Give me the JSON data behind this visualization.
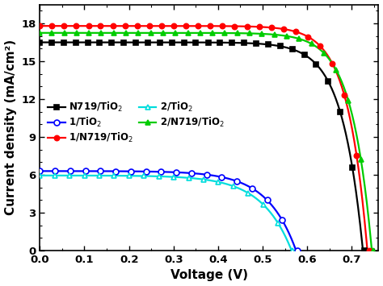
{
  "title": "",
  "xlabel": "Voltage (V)",
  "ylabel": "Current density (mA/cm²)",
  "xlim": [
    0,
    0.76
  ],
  "ylim": [
    0,
    19.5
  ],
  "yticks": [
    0,
    3,
    6,
    9,
    12,
    15,
    18
  ],
  "xticks": [
    0.0,
    0.1,
    0.2,
    0.3,
    0.4,
    0.5,
    0.6,
    0.7
  ],
  "series": [
    {
      "label": "N719/TiO$_2$",
      "color": "#000000",
      "marker": "s",
      "markerfacecolor": "#000000",
      "markeredgecolor": "#000000",
      "markersize": 4.5,
      "linewidth": 1.6,
      "jsc": 16.5,
      "voc": 0.725,
      "n_ideal": 1.8,
      "n_markers": 28
    },
    {
      "label": "1/N719/TiO$_2$",
      "color": "#ff0000",
      "marker": "o",
      "markerfacecolor": "#ff0000",
      "markeredgecolor": "#ff0000",
      "markersize": 4.5,
      "linewidth": 1.6,
      "jsc": 17.8,
      "voc": 0.735,
      "n_ideal": 1.7,
      "n_markers": 28
    },
    {
      "label": "2/N719/TiO$_2$",
      "color": "#00cc00",
      "marker": "^",
      "markerfacecolor": "#00cc00",
      "markeredgecolor": "#00cc00",
      "markersize": 4.5,
      "linewidth": 1.6,
      "jsc": 17.25,
      "voc": 0.745,
      "n_ideal": 1.75,
      "n_markers": 28
    },
    {
      "label": "1/TiO$_2$",
      "color": "#0000ff",
      "marker": "o",
      "markerfacecolor": "#ffffff",
      "markeredgecolor": "#0000ff",
      "markersize": 5,
      "linewidth": 1.6,
      "jsc": 6.3,
      "voc": 0.575,
      "n_ideal": 2.5,
      "n_markers": 18
    },
    {
      "label": "2/TiO$_2$",
      "color": "#00dddd",
      "marker": "^",
      "markerfacecolor": "#ffffff",
      "markeredgecolor": "#00dddd",
      "markersize": 5,
      "linewidth": 1.6,
      "jsc": 5.95,
      "voc": 0.565,
      "n_ideal": 2.6,
      "n_markers": 18
    }
  ],
  "legend_order": [
    0,
    3,
    1,
    4,
    2,
    -1
  ],
  "legend_labels_order": [
    "N719/TiO$_2$",
    "1/TiO$_2$",
    "1/N719/TiO$_2$",
    "2/TiO$_2$",
    "2/N719/TiO$_2$",
    ""
  ],
  "background_color": "#ffffff",
  "legend_fontsize": 8.5,
  "axis_label_fontsize": 11,
  "tick_fontsize": 9.5
}
